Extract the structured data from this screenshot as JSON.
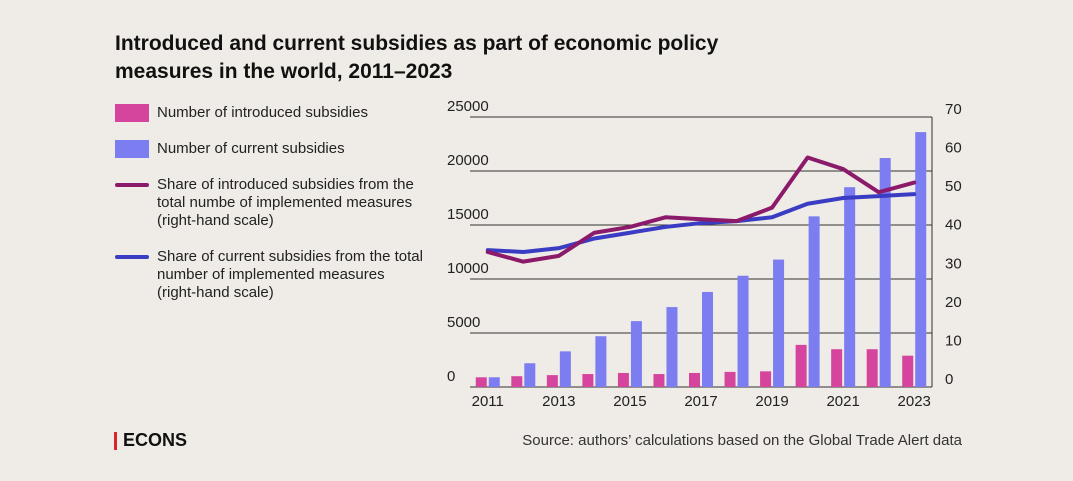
{
  "title_line1": "Introduced and current subsidies as part of economic policy",
  "title_line2": "measures in the world, 2011–2023",
  "legend": [
    {
      "label": "Number of introduced subsidies",
      "kind": "box",
      "color": "#d6459d"
    },
    {
      "label": "Number of current subsidies",
      "kind": "box",
      "color": "#7b7df0"
    },
    {
      "label": "Share of introduced subsidies from the total numbe of implemented measures (right-hand scale)",
      "kind": "line",
      "color": "#8b1a6b"
    },
    {
      "label": "Share of current subsidies from the total number of implemented measures (right-hand scale)",
      "kind": "line",
      "color": "#3a3dc4"
    }
  ],
  "brand": "ECONS",
  "source": "Source: authors’ calculations based on the Global Trade Alert data",
  "chart_data": {
    "type": "bar+line",
    "years": [
      2011,
      2012,
      2013,
      2014,
      2015,
      2016,
      2017,
      2018,
      2019,
      2020,
      2021,
      2022,
      2023
    ],
    "x_tick_labels": [
      "2011",
      "2013",
      "2015",
      "2017",
      "2019",
      "2021",
      "2023"
    ],
    "left_axis": {
      "ticks": [
        "0",
        "5000",
        "10000",
        "15000",
        "20000",
        "25000"
      ],
      "ylim": [
        0,
        25000
      ]
    },
    "right_axis": {
      "ticks": [
        "0",
        "10",
        "20",
        "30",
        "40",
        "50",
        "60",
        "70"
      ],
      "ylim": [
        0,
        70
      ]
    },
    "grid": true,
    "series": [
      {
        "name": "Number of introduced subsidies",
        "type": "bar",
        "axis": "left",
        "color": "#d6459d",
        "values": [
          900,
          1000,
          1100,
          1200,
          1300,
          1200,
          1300,
          1400,
          1450,
          3900,
          3500,
          3500,
          2900
        ]
      },
      {
        "name": "Number of current subsidies",
        "type": "bar",
        "axis": "left",
        "color": "#7b7df0",
        "values": [
          900,
          2200,
          3300,
          4700,
          6100,
          7400,
          8800,
          10300,
          11800,
          15800,
          18500,
          21200,
          23600
        ]
      },
      {
        "name": "Share of introduced subsidies from the total numbe of implemented measures (right-hand scale)",
        "type": "line",
        "axis": "right",
        "color": "#8b1a6b",
        "values": [
          35,
          32.5,
          34,
          40,
          41.5,
          44,
          43.5,
          43,
          46.5,
          59.5,
          56.5,
          50.5,
          53
        ]
      },
      {
        "name": "Share of current subsidies from the total number of implemented measures (right-hand scale)",
        "type": "line",
        "axis": "right",
        "color": "#3a3dc4",
        "values": [
          35.5,
          35,
          36,
          38.5,
          40,
          41.5,
          42.5,
          43,
          44,
          47.5,
          49,
          49.5,
          50
        ]
      }
    ]
  }
}
